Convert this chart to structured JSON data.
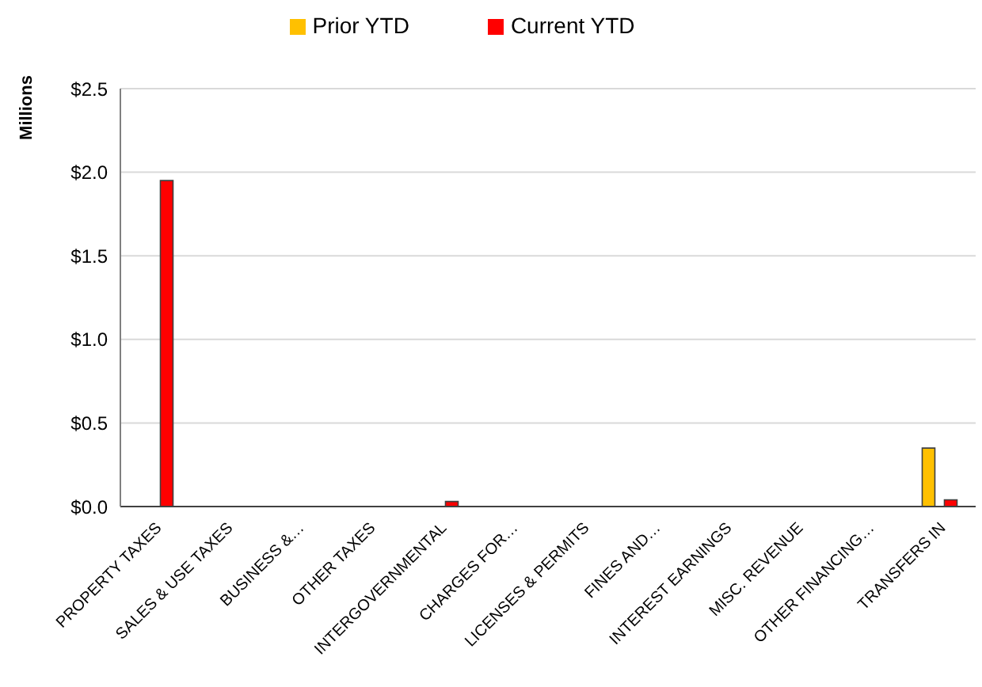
{
  "chart_data": {
    "type": "bar",
    "ylabel": "Millions",
    "categories": [
      "PROPERTY TAXES",
      "SALES & USE TAXES",
      "BUSINESS &…",
      "OTHER TAXES",
      "INTERGOVERNMENTAL",
      "CHARGES FOR…",
      "LICENSES & PERMITS",
      "FINES AND…",
      "INTEREST EARNINGS",
      "MISC. REVENUE",
      "OTHER FINANCING…",
      "TRANSFERS IN"
    ],
    "series": [
      {
        "name": "Prior YTD",
        "color": "#ffc000",
        "values": [
          0,
          0,
          0,
          0,
          0,
          0,
          0,
          0,
          0,
          0,
          0,
          0.35
        ]
      },
      {
        "name": "Current YTD",
        "color": "#ff0000",
        "values": [
          1.95,
          0,
          0,
          0,
          0.03,
          0,
          0,
          0,
          0,
          0,
          0,
          0.04
        ]
      }
    ],
    "ylim": [
      0,
      2.5
    ],
    "yticks": [
      {
        "value": 0,
        "label": "$0.0"
      },
      {
        "value": 0.5,
        "label": "$0.5"
      },
      {
        "value": 1,
        "label": "$1.0"
      },
      {
        "value": 1.5,
        "label": "$1.5"
      },
      {
        "value": 2,
        "label": "$2.0"
      },
      {
        "value": 2.5,
        "label": "$2.5"
      }
    ],
    "grid": "y",
    "legend": "top"
  }
}
